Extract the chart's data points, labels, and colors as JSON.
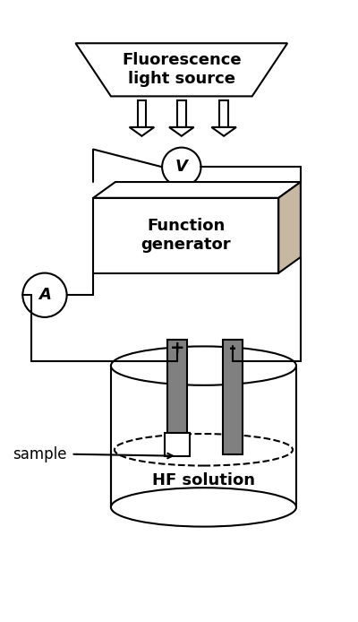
{
  "fig_width": 4.0,
  "fig_height": 6.94,
  "bg_color": "#ffffff",
  "line_color": "#000000",
  "box_fill": "#ffffff",
  "shadow_fill": "#c8b8a2",
  "electrode_fill": "#808080",
  "trapezoid_fill": "#ffffff",
  "circle_stroke": "#000000",
  "lw": 1.5,
  "labels": {
    "fluorescence": "Fluorescence\nlight source",
    "function_gen": "Function\ngenerator",
    "voltmeter": "V",
    "ammeter": "A",
    "hf_solution": "HF solution",
    "sample": "sample",
    "plus": "+",
    "minus": "-"
  }
}
